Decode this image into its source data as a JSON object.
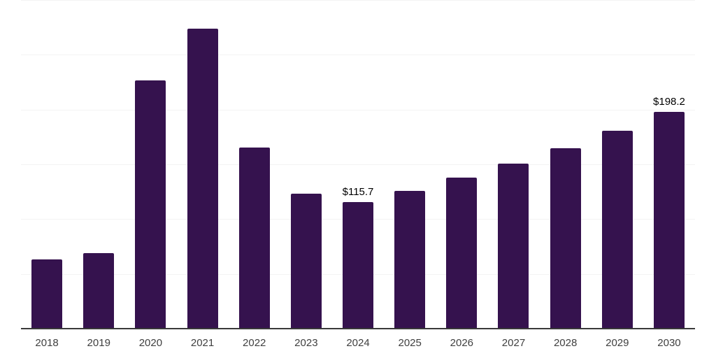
{
  "chart_data": {
    "type": "bar",
    "title": "",
    "xlabel": "",
    "ylabel": "",
    "categories": [
      "2018",
      "2019",
      "2020",
      "2021",
      "2022",
      "2023",
      "2024",
      "2025",
      "2026",
      "2027",
      "2028",
      "2029",
      "2030"
    ],
    "values": [
      63.2,
      68.9,
      226.6,
      273.8,
      165.3,
      123.2,
      115.7,
      125.7,
      137.9,
      150.6,
      164.7,
      180.6,
      198.2
    ],
    "data_labels": [
      "",
      "",
      "",
      "",
      "",
      "",
      "$115.7",
      "",
      "",
      "",
      "",
      "",
      "$198.2"
    ],
    "ylim": [
      0,
      300
    ],
    "gridline_values": [
      50,
      100,
      150,
      200,
      250,
      300
    ],
    "grid_on": true,
    "legend": "none",
    "colors": {
      "bar": "#35124e",
      "gridline": "#f3f3f3",
      "axis_line": "#3a3a3a",
      "tick_label": "#3f3f3f",
      "data_label": "#000000",
      "background": "#ffffff"
    }
  }
}
